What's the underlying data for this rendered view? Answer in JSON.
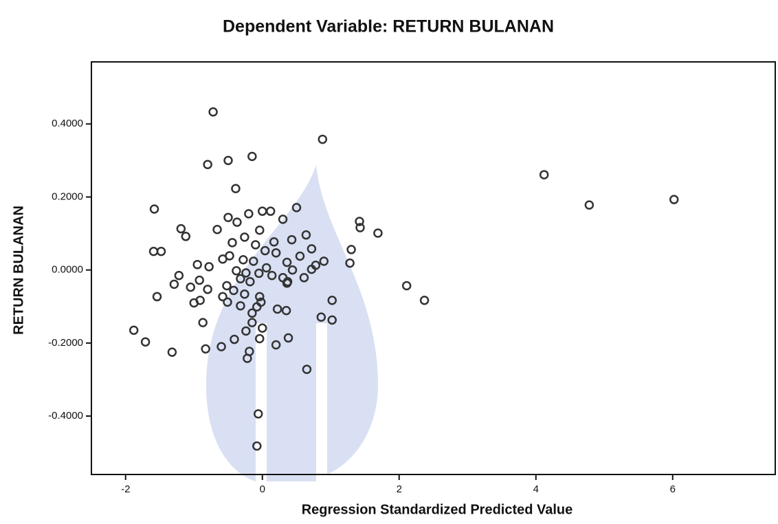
{
  "chart_data": {
    "type": "scatter",
    "title": "Dependent Variable: RETURN BULANAN",
    "x_label": "Regression Standardized Predicted Value",
    "y_label": "RETURN BULANAN",
    "color": "#333333",
    "xlim": [
      -2.5,
      7.5
    ],
    "ylim": [
      -0.56,
      0.57
    ],
    "xticks": [
      -2,
      0,
      2,
      4,
      6
    ],
    "yticks": [
      {
        "value": -0.4,
        "label": "-0.4000"
      },
      {
        "value": -0.2,
        "label": "-0.2000"
      },
      {
        "value": 0,
        "label": "0.0000"
      },
      {
        "value": 0.2,
        "label": "0.2000"
      },
      {
        "value": 0.4,
        "label": "0.4000"
      }
    ],
    "x": [
      -0.72,
      0.88,
      -0.8,
      -0.5,
      -0.15,
      4.12,
      4.78,
      6.02,
      -0.39,
      -1.58,
      0.5,
      0,
      0.12,
      -0.2,
      -0.5,
      0.3,
      1.42,
      1.43,
      -0.37,
      -1.19,
      -0.66,
      -0.04,
      -1.12,
      1.69,
      0.64,
      -0.26,
      0.17,
      0.43,
      -0.44,
      -0.1,
      0.72,
      1.3,
      -1.59,
      -1.48,
      0.04,
      0.2,
      -0.48,
      -0.58,
      0.55,
      -0.28,
      -0.13,
      0.9,
      0.36,
      1.28,
      0.78,
      -0.95,
      -0.78,
      0.06,
      0.44,
      0.72,
      -0.38,
      -0.24,
      -0.05,
      0.14,
      -1.22,
      0.3,
      -0.32,
      0.61,
      -0.92,
      -0.18,
      0.36,
      -1.29,
      -0.52,
      -1.05,
      2.11,
      -0.8,
      -0.42,
      0.37,
      -0.26,
      -0.04,
      -1.54,
      -0.58,
      -0.91,
      1.02,
      2.37,
      -1.0,
      -0.51,
      -0.02,
      -0.32,
      -0.08,
      0.22,
      0.35,
      -0.15,
      0.86,
      1.02,
      -0.87,
      -0.15,
      0,
      -0.24,
      -1.88,
      -0.41,
      0.38,
      -0.04,
      -1.71,
      0.2,
      -0.6,
      -0.83,
      -1.32,
      -0.19,
      -0.22,
      0.65,
      -0.06,
      -0.08
    ],
    "values": [
      0.433,
      0.358,
      0.289,
      0.3,
      0.311,
      0.261,
      0.178,
      0.193,
      0.223,
      0.167,
      0.171,
      0.161,
      0.161,
      0.154,
      0.144,
      0.139,
      0.133,
      0.116,
      0.131,
      0.113,
      0.111,
      0.109,
      0.092,
      0.101,
      0.096,
      0.09,
      0.077,
      0.083,
      0.075,
      0.069,
      0.058,
      0.056,
      0.051,
      0.051,
      0.053,
      0.047,
      0.039,
      0.03,
      0.038,
      0.028,
      0.024,
      0.024,
      0.021,
      0.019,
      0.013,
      0.015,
      0.009,
      0.006,
      0,
      0.002,
      -0.002,
      -0.008,
      -0.009,
      -0.015,
      -0.015,
      -0.021,
      -0.024,
      -0.021,
      -0.028,
      -0.032,
      -0.036,
      -0.039,
      -0.043,
      -0.047,
      -0.043,
      -0.053,
      -0.056,
      -0.032,
      -0.066,
      -0.073,
      -0.073,
      -0.073,
      -0.083,
      -0.083,
      -0.083,
      -0.09,
      -0.088,
      -0.088,
      -0.098,
      -0.101,
      -0.107,
      -0.111,
      -0.118,
      -0.129,
      -0.137,
      -0.144,
      -0.144,
      -0.159,
      -0.167,
      -0.165,
      -0.19,
      -0.186,
      -0.188,
      -0.197,
      -0.205,
      -0.21,
      -0.216,
      -0.225,
      -0.223,
      -0.242,
      -0.272,
      -0.394,
      -0.482
    ]
  }
}
